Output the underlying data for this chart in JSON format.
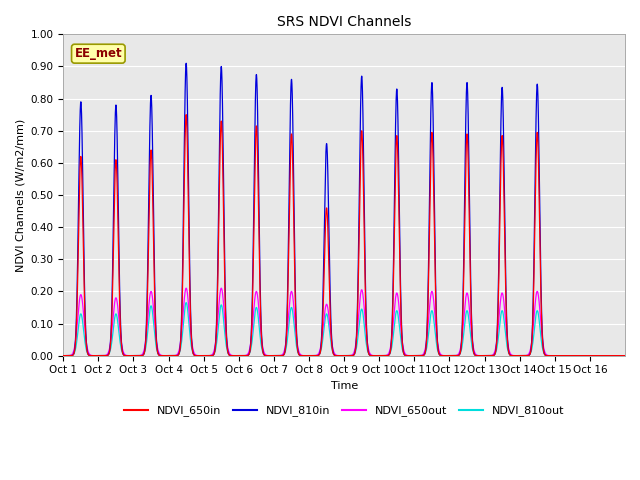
{
  "title": "SRS NDVI Channels",
  "xlabel": "Time",
  "ylabel": "NDVI Channels (W/m2/mm)",
  "ylim": [
    0.0,
    1.0
  ],
  "yticks": [
    0.0,
    0.1,
    0.2,
    0.3,
    0.4,
    0.5,
    0.6,
    0.7,
    0.8,
    0.9,
    1.0
  ],
  "xtick_labels": [
    "Oct 1",
    "Oct 2",
    "Oct 3",
    "Oct 4",
    "Oct 5",
    "Oct 6",
    "Oct 7",
    "Oct 8",
    "Oct 9",
    "Oct 10",
    "Oct 11",
    "Oct 12",
    "Oct 13",
    "Oct 14",
    "Oct 15",
    "Oct 16"
  ],
  "annotation_text": "EE_met",
  "colors": {
    "NDVI_650in": "#ff0000",
    "NDVI_810in": "#0000dd",
    "NDVI_650out": "#ff00ff",
    "NDVI_810out": "#00dddd"
  },
  "peak_810in": [
    0.79,
    0.78,
    0.81,
    0.91,
    0.9,
    0.875,
    0.86,
    0.66,
    0.87,
    0.83,
    0.85,
    0.85,
    0.835,
    0.845,
    0.0,
    0.0
  ],
  "peak_650in": [
    0.62,
    0.61,
    0.64,
    0.75,
    0.73,
    0.715,
    0.69,
    0.46,
    0.7,
    0.685,
    0.695,
    0.69,
    0.685,
    0.695,
    0.0,
    0.0
  ],
  "peak_650out": [
    0.19,
    0.18,
    0.2,
    0.21,
    0.21,
    0.2,
    0.2,
    0.16,
    0.205,
    0.195,
    0.2,
    0.195,
    0.195,
    0.2,
    0.0,
    0.0
  ],
  "peak_810out": [
    0.13,
    0.13,
    0.155,
    0.165,
    0.158,
    0.15,
    0.15,
    0.13,
    0.145,
    0.14,
    0.14,
    0.14,
    0.14,
    0.14,
    0.0,
    0.0
  ],
  "sigma_in": 0.065,
  "sigma_out": 0.09,
  "background_color": "#e8e8e8",
  "grid_color": "#ffffff",
  "fig_background": "#ffffff",
  "n_days": 16,
  "pts_per_day": 300,
  "title_fontsize": 10,
  "axis_fontsize": 8,
  "tick_fontsize": 7.5
}
